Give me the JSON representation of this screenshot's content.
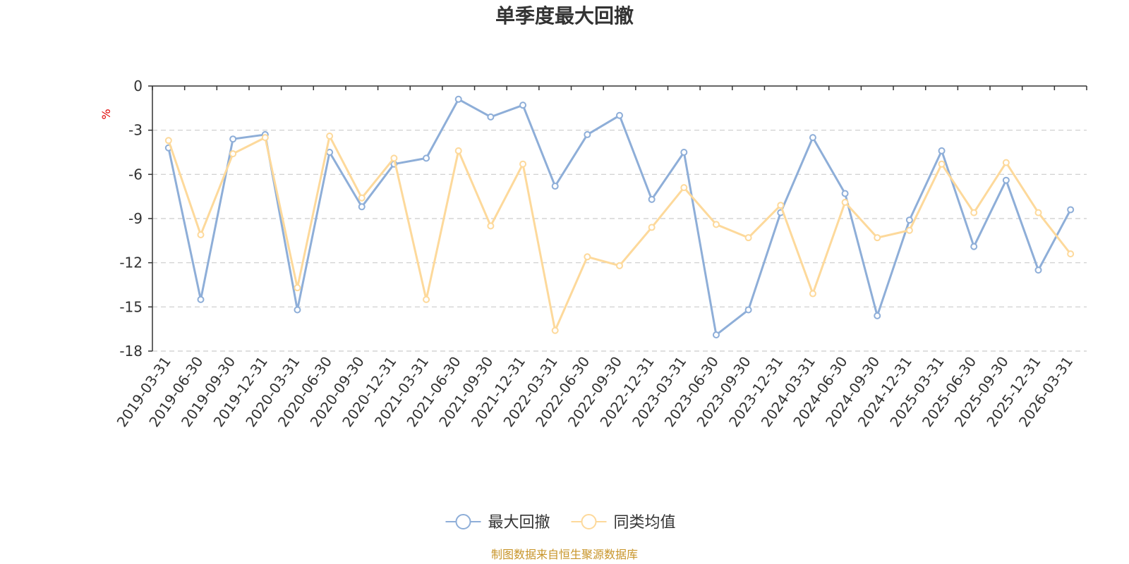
{
  "chart_data": {
    "type": "line",
    "title": "单季度最大回撤",
    "ylabel": "%",
    "ylim": [
      -18,
      0
    ],
    "yticks": [
      0,
      -3,
      -6,
      -9,
      -12,
      -15,
      -18
    ],
    "grid": true,
    "legend_position": "bottom",
    "categories": [
      "2019-03-31",
      "2019-06-30",
      "2019-09-30",
      "2019-12-31",
      "2020-03-31",
      "2020-06-30",
      "2020-09-30",
      "2020-12-31",
      "2021-03-31",
      "2021-06-30",
      "2021-09-30",
      "2021-12-31",
      "2022-03-31",
      "2022-06-30",
      "2022-09-30",
      "2022-12-31",
      "2023-03-31",
      "2023-06-30",
      "2023-09-30",
      "2023-12-31",
      "2024-03-31",
      "2024-06-30",
      "2024-09-30",
      "2024-12-31",
      "2025-03-31",
      "2025-06-30",
      "2025-09-30",
      "2025-12-31",
      "2026-03-31"
    ],
    "series": [
      {
        "name": "最大回撤",
        "color": "#8eaed8",
        "values": [
          -4.2,
          -14.5,
          -3.6,
          -3.3,
          -15.2,
          -4.5,
          -8.2,
          -5.3,
          -4.9,
          -0.9,
          -2.1,
          -1.3,
          -6.8,
          -3.3,
          -2.0,
          -7.7,
          -4.5,
          -16.9,
          -15.2,
          -8.6,
          -3.5,
          -7.3,
          -15.6,
          -9.1,
          -4.4,
          -10.9,
          -6.4,
          -12.5,
          -8.4
        ]
      },
      {
        "name": "同类均值",
        "color": "#fdd99b",
        "values": [
          -3.7,
          -10.1,
          -4.6,
          -3.5,
          -13.7,
          -3.4,
          -7.6,
          -4.9,
          -14.5,
          -4.4,
          -9.5,
          -5.3,
          -16.6,
          -11.6,
          -12.2,
          -9.6,
          -6.9,
          -9.4,
          -10.3,
          -8.1,
          -14.1,
          -7.9,
          -10.3,
          -9.8,
          -5.3,
          -8.6,
          -5.2,
          -8.6,
          -11.4
        ]
      }
    ]
  },
  "source": "制图数据来自恒生聚源数据库"
}
